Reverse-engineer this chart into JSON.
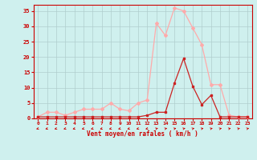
{
  "x": [
    0,
    1,
    2,
    3,
    4,
    5,
    6,
    7,
    8,
    9,
    10,
    11,
    12,
    13,
    14,
    15,
    16,
    17,
    18,
    19,
    20,
    21,
    22,
    23
  ],
  "rafales": [
    0.5,
    2,
    2,
    1,
    2,
    3,
    3,
    3,
    5,
    3,
    2.5,
    5,
    6,
    31,
    27,
    36,
    35,
    29.5,
    24,
    11,
    11,
    1,
    0.5,
    0.5
  ],
  "moyen": [
    0.5,
    0.5,
    0.5,
    0.5,
    0.5,
    0.5,
    0.5,
    0.5,
    0.5,
    0.5,
    0.5,
    0.5,
    1,
    2,
    2,
    11.5,
    19.5,
    10.5,
    4.5,
    7.5,
    0.5,
    0.5,
    0.5,
    0.5
  ],
  "ylim": [
    0,
    37
  ],
  "yticks": [
    0,
    5,
    10,
    15,
    20,
    25,
    30,
    35
  ],
  "xlabel": "Vent moyen/en rafales ( km/h )",
  "bg_color": "#cff0ee",
  "grid_color": "#b0cece",
  "line_color_rafales": "#ffaaaa",
  "line_color_moyen": "#cc2222",
  "arrow_dirs": [
    225,
    225,
    225,
    225,
    225,
    225,
    225,
    225,
    225,
    225,
    225,
    225,
    225,
    45,
    45,
    45,
    45,
    45,
    45,
    45,
    45,
    45,
    45,
    45
  ]
}
